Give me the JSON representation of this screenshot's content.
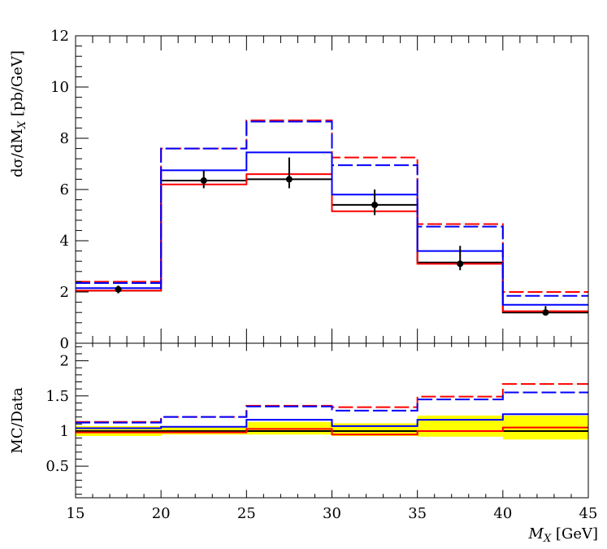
{
  "chart_data": [
    {
      "type": "line",
      "panel": "main",
      "ylabel": "dσ/dM_X [pb/GeV]",
      "xlabel": "",
      "xlim": [
        15,
        45
      ],
      "ylim": [
        0,
        12
      ],
      "x_ticks": [
        15,
        20,
        25,
        30,
        35,
        40,
        45
      ],
      "y_ticks": [
        0,
        2,
        4,
        6,
        8,
        10,
        12
      ],
      "y_tick_labels": [
        "0",
        "2",
        "4",
        "6",
        "8",
        "10",
        "12"
      ],
      "bin_edges": [
        15,
        20,
        25,
        30,
        35,
        40,
        45
      ],
      "data_points": {
        "x": [
          17.5,
          22.5,
          27.5,
          32.5,
          37.5,
          42.5
        ],
        "y": [
          2.1,
          6.35,
          6.4,
          5.4,
          3.1,
          1.2
        ],
        "err_down": [
          0.15,
          0.3,
          0.35,
          0.4,
          0.25,
          0.1
        ],
        "err_up": [
          0.15,
          0.4,
          0.85,
          0.6,
          0.7,
          0.25
        ],
        "color": "#000000"
      },
      "series": [
        {
          "values": [
            2.05,
            6.35,
            6.4,
            5.4,
            3.15,
            1.2
          ],
          "color": "#000000",
          "style": "solid"
        },
        {
          "values": [
            2.05,
            6.2,
            6.6,
            5.15,
            3.1,
            1.25
          ],
          "color": "#ff0000",
          "style": "solid"
        },
        {
          "values": [
            2.15,
            6.75,
            7.45,
            5.8,
            3.6,
            1.5
          ],
          "color": "#0000ff",
          "style": "solid"
        },
        {
          "values": [
            2.4,
            7.6,
            8.7,
            7.25,
            4.65,
            2.0
          ],
          "color": "#ff0000",
          "style": "dashed"
        },
        {
          "values": [
            2.35,
            7.6,
            8.65,
            6.95,
            4.55,
            1.85
          ],
          "color": "#0000ff",
          "style": "dashed"
        }
      ]
    },
    {
      "type": "line",
      "panel": "ratio",
      "ylabel": "MC/Data",
      "xlabel": "M_X [GeV]",
      "xlim": [
        15,
        45
      ],
      "ylim": [
        0.05,
        2.25
      ],
      "x_ticks": [
        15,
        20,
        25,
        30,
        35,
        40,
        45
      ],
      "x_tick_labels": [
        "15",
        "20",
        "25",
        "30",
        "35",
        "40",
        "45"
      ],
      "y_ticks": [
        0.5,
        1,
        1.5,
        2
      ],
      "y_tick_labels": [
        "0.5",
        "1",
        "1.5",
        "2"
      ],
      "bin_edges": [
        15,
        20,
        25,
        30,
        35,
        40,
        45
      ],
      "uncertainty_band": {
        "low": [
          0.93,
          0.95,
          0.95,
          0.93,
          0.92,
          0.88
        ],
        "high": [
          1.07,
          1.06,
          1.13,
          1.11,
          1.22,
          1.22
        ],
        "color": "#ffff00"
      },
      "series": [
        {
          "values": [
            1.0,
            1.0,
            1.0,
            1.0,
            1.0,
            1.0
          ],
          "color": "#000000",
          "style": "solid"
        },
        {
          "values": [
            0.98,
            0.98,
            1.03,
            0.95,
            1.0,
            1.05
          ],
          "color": "#ff0000",
          "style": "solid"
        },
        {
          "values": [
            1.04,
            1.06,
            1.16,
            1.07,
            1.16,
            1.24
          ],
          "color": "#0000ff",
          "style": "solid"
        },
        {
          "values": [
            1.13,
            1.2,
            1.36,
            1.34,
            1.49,
            1.67
          ],
          "color": "#ff0000",
          "style": "dashed"
        },
        {
          "values": [
            1.12,
            1.2,
            1.35,
            1.29,
            1.45,
            1.55
          ],
          "color": "#0000ff",
          "style": "dashed"
        }
      ]
    }
  ]
}
